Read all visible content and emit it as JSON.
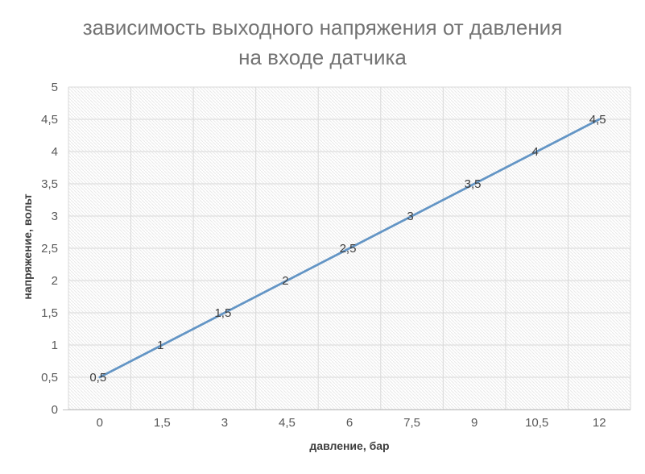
{
  "title_line1": "зависимость выходного напряжения от давления",
  "title_line2": "на входе датчика",
  "chart_data": {
    "type": "line",
    "title": "зависимость выходного напряжения от давления на входе датчика",
    "xlabel": "давление, бар",
    "ylabel": "напряжение, вольт",
    "x": [
      0,
      1.5,
      3,
      4.5,
      6,
      7.5,
      9,
      10.5,
      12
    ],
    "x_tick_labels": [
      "0",
      "1,5",
      "3",
      "4,5",
      "6",
      "7,5",
      "9",
      "10,5",
      "12"
    ],
    "series": [
      {
        "name": "напряжение",
        "values": [
          0.5,
          1,
          1.5,
          2,
          2.5,
          3,
          3.5,
          4,
          4.5
        ],
        "data_labels": [
          "0,5",
          "1",
          "1,5",
          "2",
          "2,5",
          "3",
          "3,5",
          "4",
          "4,5"
        ],
        "color": "#6395c5"
      }
    ],
    "ylim": [
      0,
      5
    ],
    "y_ticks": [
      0,
      0.5,
      1,
      1.5,
      2,
      2.5,
      3,
      3.5,
      4,
      4.5,
      5
    ],
    "y_tick_labels": [
      "0",
      "0,5",
      "1",
      "1,5",
      "2",
      "2,5",
      "3",
      "3,5",
      "4",
      "4,5",
      "5"
    ],
    "grid": {
      "horizontal": true,
      "vertical": true
    },
    "legend_position": "none",
    "plot_area_fill": "diagonal-hatch",
    "colors": {
      "series_line": "#6395c5",
      "gridline": "#d9d9d9",
      "axis_line": "#bfbfbf",
      "hatch": "#e9e9e9",
      "title_text": "#737373",
      "tick_text": "#595959",
      "axis_title_text": "#3f3f3f",
      "data_label_text": "#3d3d3d",
      "background": "#ffffff"
    }
  }
}
